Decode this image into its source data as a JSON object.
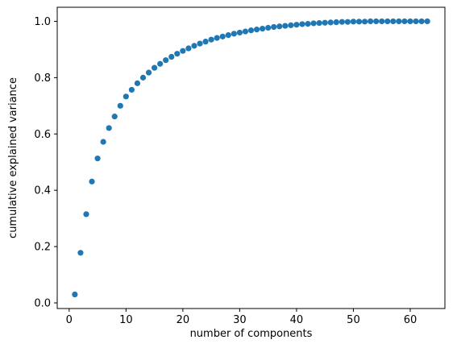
{
  "chart_data": {
    "type": "scatter",
    "xlabel": "number of  components",
    "ylabel": "cumulative explained variance",
    "xlim": [
      -2.1,
      66.1
    ],
    "ylim": [
      -0.02,
      1.05
    ],
    "xticks": [
      0,
      10,
      20,
      30,
      40,
      50,
      60
    ],
    "yticks": [
      0.0,
      0.2,
      0.4,
      0.6,
      0.8,
      1.0
    ],
    "grid": false,
    "marker_color": "#1f77b4",
    "series": [
      {
        "x": [
          1,
          2,
          3,
          4,
          5,
          6,
          7,
          8,
          9,
          10,
          11,
          12,
          13,
          14,
          15,
          16,
          17,
          18,
          19,
          20,
          21,
          22,
          23,
          24,
          25,
          26,
          27,
          28,
          29,
          30,
          31,
          32,
          33,
          34,
          35,
          36,
          37,
          38,
          39,
          40,
          41,
          42,
          43,
          44,
          45,
          46,
          47,
          48,
          49,
          50,
          51,
          52,
          53,
          54,
          55,
          56,
          57,
          58,
          59,
          60,
          61,
          62,
          63
        ],
        "values": [
          0.03,
          0.178,
          0.315,
          0.431,
          0.513,
          0.572,
          0.621,
          0.662,
          0.7,
          0.733,
          0.757,
          0.78,
          0.8,
          0.818,
          0.835,
          0.849,
          0.862,
          0.874,
          0.885,
          0.895,
          0.904,
          0.913,
          0.921,
          0.928,
          0.935,
          0.941,
          0.946,
          0.951,
          0.956,
          0.96,
          0.964,
          0.968,
          0.971,
          0.974,
          0.977,
          0.98,
          0.982,
          0.984,
          0.986,
          0.988,
          0.99,
          0.991,
          0.993,
          0.994,
          0.995,
          0.996,
          0.997,
          0.998,
          0.998,
          0.999,
          0.999,
          0.999,
          1.0,
          1.0,
          1.0,
          1.0,
          1.0,
          1.0,
          1.0,
          1.0,
          1.0,
          1.0,
          1.0
        ]
      }
    ]
  }
}
